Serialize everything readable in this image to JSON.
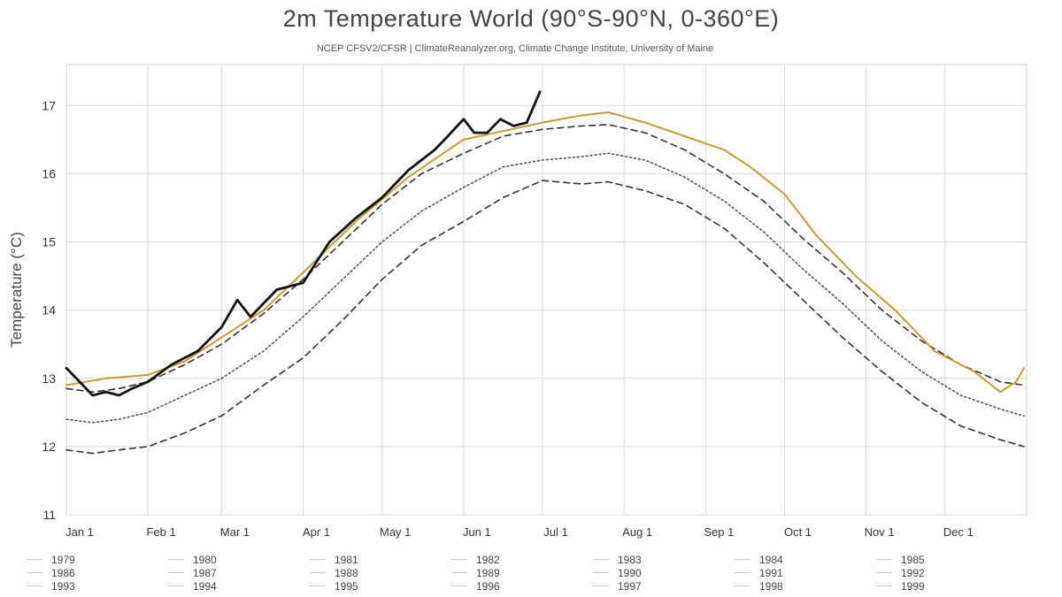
{
  "chart_data": {
    "type": "line",
    "title": "2m Temperature World (90°S-90°N, 0-360°E)",
    "subtitle": "NCEP CFSV2/CFSR | ClimateReanalyzer.org, Climate Change Institute, University of Maine",
    "ylabel": "Temperature (°C)",
    "xlabel": "",
    "ylim": [
      11,
      17.6
    ],
    "yticks": [
      11,
      12,
      13,
      14,
      15,
      16,
      17
    ],
    "xlim_days": [
      0,
      365
    ],
    "xticks": [
      {
        "label": "Jan 1",
        "day": 0
      },
      {
        "label": "Feb 1",
        "day": 31
      },
      {
        "label": "Mar 1",
        "day": 59
      },
      {
        "label": "Apr 1",
        "day": 90
      },
      {
        "label": "May 1",
        "day": 120
      },
      {
        "label": "Jun 1",
        "day": 151
      },
      {
        "label": "Jul 1",
        "day": 181
      },
      {
        "label": "Aug 1",
        "day": 212
      },
      {
        "label": "Sep 1",
        "day": 243
      },
      {
        "label": "Oct 1",
        "day": 273
      },
      {
        "label": "Nov 1",
        "day": 304
      },
      {
        "label": "Dec 1",
        "day": 334
      }
    ],
    "grid": true,
    "legend_position": "bottom",
    "colors": {
      "current_year": "#111111",
      "highlight_year": "#c99a3c",
      "other_years": "#cccccc",
      "mean": "#555555",
      "sigma": "#333333",
      "grid": "#d8d8d8"
    },
    "series": [
      {
        "name": "",
        "style": "current",
        "x": [
          0,
          5,
          10,
          15,
          20,
          25,
          31,
          40,
          50,
          59,
          65,
          70,
          75,
          80,
          90,
          100,
          110,
          120,
          130,
          140,
          145,
          151,
          155,
          160,
          165,
          170,
          175,
          180
        ],
        "y": [
          13.15,
          12.95,
          12.75,
          12.8,
          12.75,
          12.85,
          12.95,
          13.2,
          13.4,
          13.75,
          14.15,
          13.9,
          14.1,
          14.3,
          14.4,
          15.0,
          15.35,
          15.65,
          16.05,
          16.35,
          16.55,
          16.8,
          16.6,
          16.6,
          16.8,
          16.7,
          16.75,
          17.2
        ]
      },
      {
        "name": "",
        "style": "highlight",
        "x": [
          0,
          15,
          31,
          45,
          59,
          75,
          90,
          110,
          130,
          151,
          181,
          195,
          206,
          220,
          235,
          250,
          260,
          273,
          285,
          300,
          315,
          330,
          345,
          355,
          361,
          364
        ],
        "y": [
          12.9,
          13.0,
          13.05,
          13.25,
          13.6,
          14.0,
          14.55,
          15.3,
          15.95,
          16.5,
          16.75,
          16.85,
          16.9,
          16.75,
          16.55,
          16.35,
          16.1,
          15.7,
          15.1,
          14.5,
          14.0,
          13.4,
          13.1,
          12.8,
          12.95,
          13.15
        ]
      },
      {
        "name": "",
        "style": "mean",
        "x": [
          0,
          10,
          20,
          31,
          45,
          59,
          75,
          90,
          105,
          120,
          135,
          151,
          166,
          181,
          196,
          206,
          220,
          235,
          250,
          265,
          280,
          295,
          310,
          325,
          340,
          355,
          364
        ],
        "y": [
          12.4,
          12.35,
          12.4,
          12.5,
          12.75,
          13.0,
          13.4,
          13.9,
          14.45,
          15.0,
          15.45,
          15.8,
          16.1,
          16.2,
          16.25,
          16.3,
          16.2,
          15.95,
          15.6,
          15.15,
          14.6,
          14.1,
          13.55,
          13.1,
          12.75,
          12.55,
          12.45
        ]
      },
      {
        "name": "",
        "style": "sigma",
        "x": [
          0,
          10,
          20,
          31,
          45,
          59,
          75,
          90,
          105,
          120,
          135,
          151,
          166,
          181,
          196,
          206,
          220,
          235,
          250,
          265,
          280,
          295,
          310,
          325,
          340,
          355,
          364
        ],
        "y": [
          12.85,
          12.8,
          12.85,
          12.95,
          13.2,
          13.5,
          13.95,
          14.45,
          15.0,
          15.55,
          16.0,
          16.3,
          16.55,
          16.65,
          16.7,
          16.72,
          16.6,
          16.35,
          16.0,
          15.6,
          15.05,
          14.55,
          14.0,
          13.55,
          13.2,
          12.95,
          12.9
        ]
      },
      {
        "name": "",
        "style": "sigma",
        "x": [
          0,
          10,
          20,
          31,
          45,
          59,
          75,
          90,
          105,
          120,
          135,
          151,
          166,
          181,
          196,
          206,
          220,
          235,
          250,
          265,
          280,
          295,
          310,
          325,
          340,
          355,
          364
        ],
        "y": [
          11.95,
          11.9,
          11.95,
          12.0,
          12.2,
          12.45,
          12.9,
          13.3,
          13.85,
          14.45,
          14.95,
          15.3,
          15.65,
          15.9,
          15.85,
          15.88,
          15.75,
          15.55,
          15.2,
          14.7,
          14.15,
          13.6,
          13.1,
          12.65,
          12.3,
          12.1,
          12.0
        ]
      }
    ],
    "legend_entries": [
      "1979",
      "1980",
      "1981",
      "1982",
      "1983",
      "1984",
      "1985",
      "1986",
      "1987",
      "1988",
      "1989",
      "1990",
      "1991",
      "1992",
      "1993",
      "1994",
      "1995",
      "1996",
      "1997",
      "1998",
      "1999"
    ]
  }
}
